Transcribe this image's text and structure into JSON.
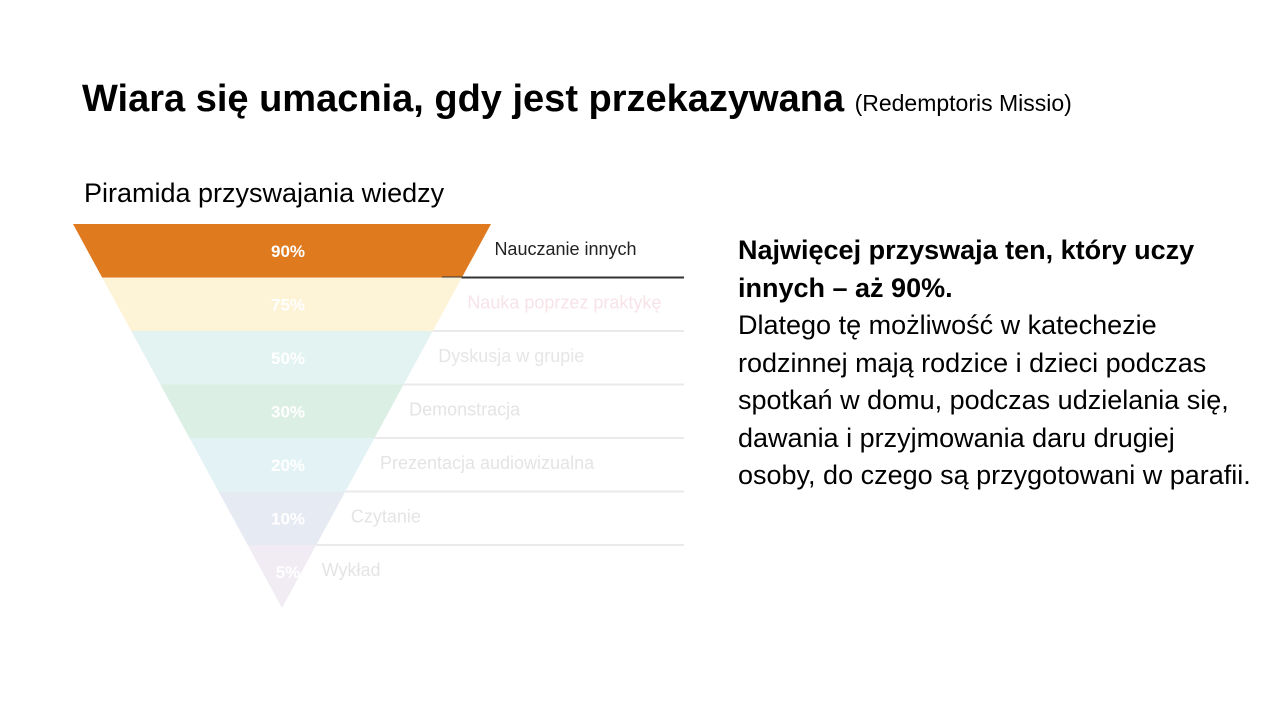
{
  "title": {
    "main": "Wiara się umacnia, gdy jest przekazywana",
    "source": "(Redemptoris Missio)"
  },
  "pyramid": {
    "heading": "Piramida przyswajania wiedzy",
    "levels": [
      {
        "percent": "90%",
        "label": "Nauczanie innych",
        "fill": "#e07a1f",
        "percent_color": "#ffffff",
        "label_color": "#222222"
      },
      {
        "percent": "75%",
        "label": "Nauka poprzez praktykę",
        "fill": "#fdf3d6",
        "percent_color": "#ffffff",
        "label_color": "#f7e3e8"
      },
      {
        "percent": "50%",
        "label": "Dyskusja w grupie",
        "fill": "#e3f3f1",
        "percent_color": "#ffffff",
        "label_color": "#e6e6e6"
      },
      {
        "percent": "30%",
        "label": "Demonstracja",
        "fill": "#dcefe4",
        "percent_color": "#ffffff",
        "label_color": "#e4e4e4"
      },
      {
        "percent": "20%",
        "label": "Prezentacja audiowizualna",
        "fill": "#e3f3f5",
        "percent_color": "#ffffff",
        "label_color": "#e4e4e4"
      },
      {
        "percent": "10%",
        "label": "Czytanie",
        "fill": "#e6eaf3",
        "percent_color": "#ffffff",
        "label_color": "#e4e4e4"
      },
      {
        "percent": "5%",
        "label": "Wykład",
        "fill": "#f1ecf3",
        "percent_color": "#ffffff",
        "label_color": "#e4e4e4"
      }
    ]
  },
  "body": {
    "lead": "Najwięcej przyswaja ten, który uczy innych – aż 90%.",
    "text": "Dlatego tę możliwość w katechezie rodzinnej mają rodzice i dzieci podczas spotkań w domu, podczas udzielania się, dawania i przyjmowania daru drugiej osoby, do czego są przygotowani w parafii."
  }
}
